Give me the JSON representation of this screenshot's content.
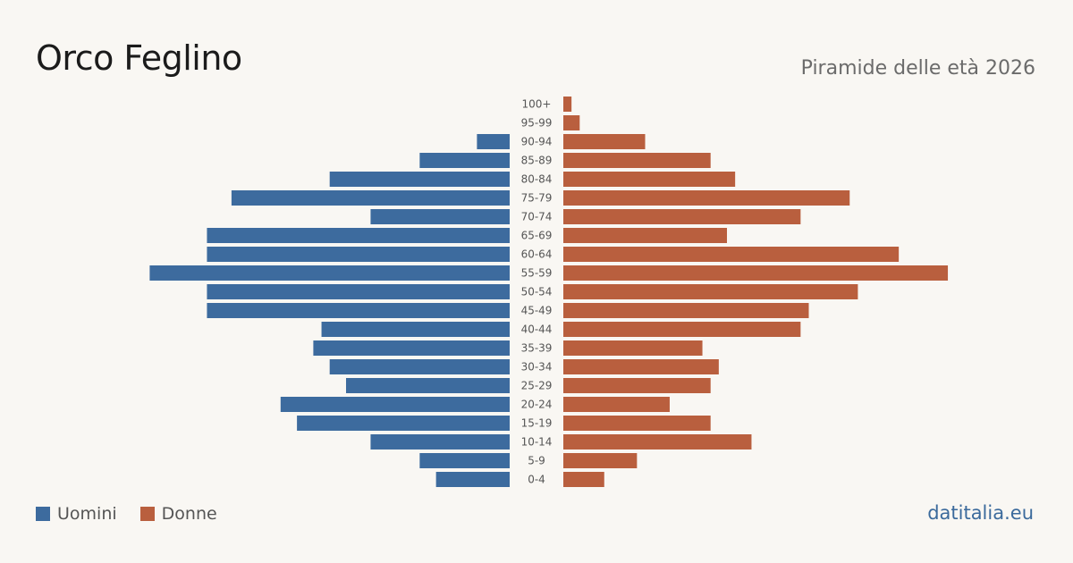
{
  "header": {
    "title": "Orco Feglino",
    "subtitle": "Piramide delle età 2026"
  },
  "legend": {
    "men_label": "Uomini",
    "women_label": "Donne"
  },
  "footer": {
    "brand": "datitalia.eu"
  },
  "colors": {
    "men": "#3d6b9e",
    "women": "#b95f3e",
    "background": "#f9f7f3"
  },
  "chart_data": {
    "type": "bar",
    "orientation": "horizontal-pyramid",
    "categories": [
      "100+",
      "95-99",
      "90-94",
      "85-89",
      "80-84",
      "75-79",
      "70-74",
      "65-69",
      "60-64",
      "55-59",
      "50-54",
      "45-49",
      "40-44",
      "35-39",
      "30-34",
      "25-29",
      "20-24",
      "15-19",
      "10-14",
      "5-9",
      "0-4"
    ],
    "series": [
      {
        "name": "Uomini",
        "values": [
          0,
          0,
          4,
          11,
          22,
          34,
          17,
          37,
          37,
          44,
          37,
          37,
          23,
          24,
          22,
          20,
          28,
          26,
          17,
          11,
          9
        ]
      },
      {
        "name": "Donne",
        "values": [
          1,
          2,
          10,
          18,
          21,
          35,
          29,
          20,
          41,
          47,
          36,
          30,
          29,
          17,
          19,
          18,
          13,
          18,
          23,
          9,
          5
        ]
      }
    ],
    "grid": false,
    "legend_position": "bottom-left"
  }
}
